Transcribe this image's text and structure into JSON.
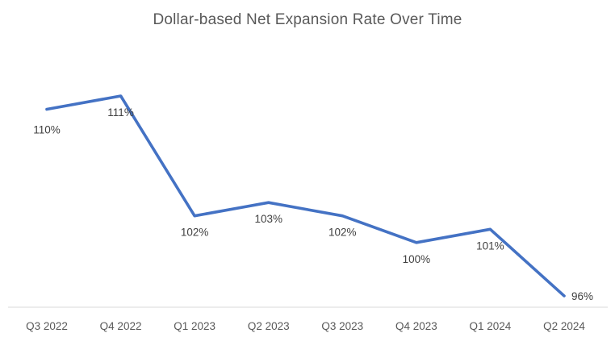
{
  "chart_data": {
    "type": "line",
    "title": "Dollar-based Net Expansion Rate Over Time",
    "categories": [
      "Q3 2022",
      "Q4 2022",
      "Q1 2023",
      "Q2 2023",
      "Q3 2023",
      "Q4 2023",
      "Q1 2024",
      "Q2 2024"
    ],
    "series": [
      {
        "name": "Dollar-based Net Expansion Rate",
        "values": [
          110,
          111,
          102,
          103,
          102,
          100,
          101,
          96
        ]
      }
    ],
    "data_labels": [
      "110%",
      "111%",
      "102%",
      "103%",
      "102%",
      "100%",
      "101%",
      "96%"
    ],
    "xlabel": "",
    "ylabel": "",
    "ylim": [
      95,
      113
    ],
    "grid": false,
    "legend": "none",
    "y_axis_visible": false,
    "x_axis_visible": true,
    "colors": {
      "line": "#4472C4",
      "title": "#595959",
      "axis_line": "#D9D9D9",
      "data_label": "#404040",
      "tick_label": "#595959",
      "background": "#FFFFFF"
    }
  }
}
